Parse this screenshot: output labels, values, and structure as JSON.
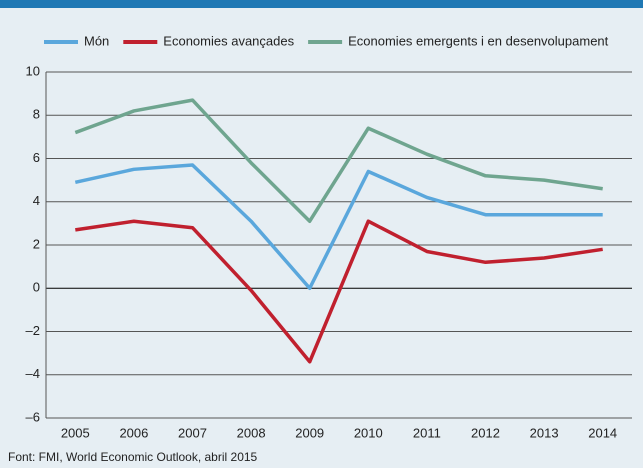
{
  "chart_data": {
    "type": "line",
    "categories": [
      "2005",
      "2006",
      "2007",
      "2008",
      "2009",
      "2010",
      "2011",
      "2012",
      "2013",
      "2014"
    ],
    "series": [
      {
        "name": "Món",
        "color": "#5aa7dc",
        "values": [
          4.9,
          5.5,
          5.7,
          3.1,
          0.0,
          5.4,
          4.2,
          3.4,
          3.4,
          3.4
        ]
      },
      {
        "name": "Economies avançades",
        "color": "#c0202e",
        "values": [
          2.7,
          3.1,
          2.8,
          -0.1,
          -3.4,
          3.1,
          1.7,
          1.2,
          1.4,
          1.8
        ]
      },
      {
        "name": "Economies emergents i en desenvolupament",
        "color": "#6fa58f",
        "values": [
          7.2,
          8.2,
          8.7,
          5.8,
          3.1,
          7.4,
          6.2,
          5.2,
          5.0,
          4.6
        ]
      }
    ],
    "ylim": [
      -6,
      10
    ],
    "yticks": [
      {
        "value": -6,
        "label": "–6"
      },
      {
        "value": -4,
        "label": "–4"
      },
      {
        "value": -2,
        "label": "–2"
      },
      0,
      2,
      4,
      6,
      8,
      10
    ],
    "grid": true,
    "source": "Font: FMI, World Economic Outlook, abril 2015"
  }
}
